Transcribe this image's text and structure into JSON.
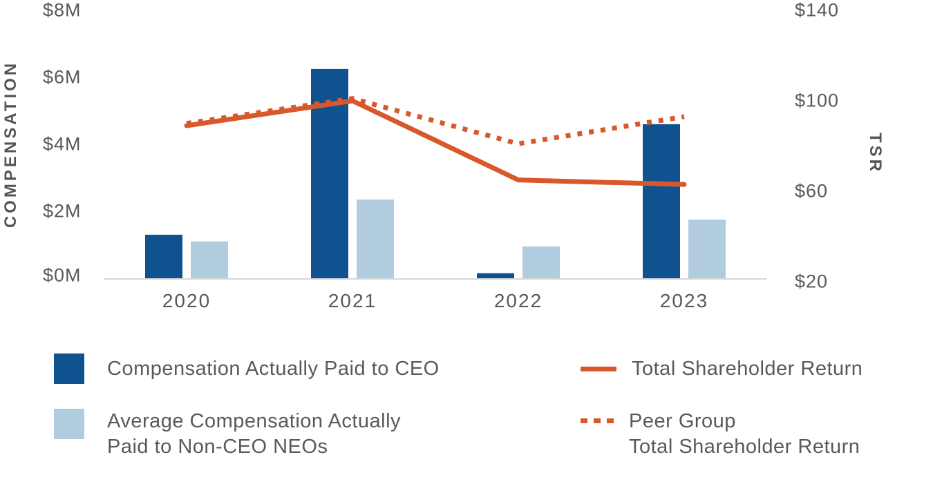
{
  "chart_data": {
    "type": "combo_bar_line",
    "categories": [
      "2020",
      "2021",
      "2022",
      "2023"
    ],
    "bar_series": [
      {
        "name": "Compensation Actually Paid to CEO",
        "color": "#10528F",
        "values_millions": [
          1.3,
          6.25,
          0.15,
          4.6
        ]
      },
      {
        "name": "Average Compensation Actually Paid to Non-CEO NEOs",
        "color": "#B2CCDF",
        "values_millions": [
          1.1,
          2.35,
          0.95,
          1.75
        ]
      }
    ],
    "line_series": [
      {
        "name": "Peer Group Total Shareholder Return",
        "color": "#D8582B",
        "style": "dotted",
        "values": [
          90,
          101,
          81,
          93
        ]
      },
      {
        "name": "Total Shareholder Return",
        "color": "#D8582B",
        "style": "solid",
        "values": [
          89,
          100,
          65,
          63
        ]
      }
    ],
    "left_axis": {
      "title": "COMPENSATION",
      "ticks": [
        "$8M",
        "$6M",
        "$4M",
        "$2M",
        "$0M"
      ],
      "min": 0,
      "max": 8
    },
    "right_axis": {
      "title": "TSR",
      "ticks": [
        "$140",
        "$100",
        "$60",
        "$20"
      ],
      "min": 20,
      "max": 140
    },
    "grid": false,
    "legend_position": "bottom"
  },
  "legend": {
    "ceo": {
      "label": "Compensation Actually Paid to CEO"
    },
    "neo": {
      "line1": "Average Compensation Actually",
      "line2": "Paid to Non-CEO NEOs"
    },
    "tsr": {
      "label": "Total Shareholder Return"
    },
    "peer": {
      "line1": "Peer Group",
      "line2": "Total Shareholder Return"
    }
  },
  "colors": {
    "ceo_bar": "#10528F",
    "neo_bar": "#B2CCDF",
    "tsr_line": "#D8582B",
    "text": "#58595B",
    "axis_line": "#D8D8D8"
  }
}
